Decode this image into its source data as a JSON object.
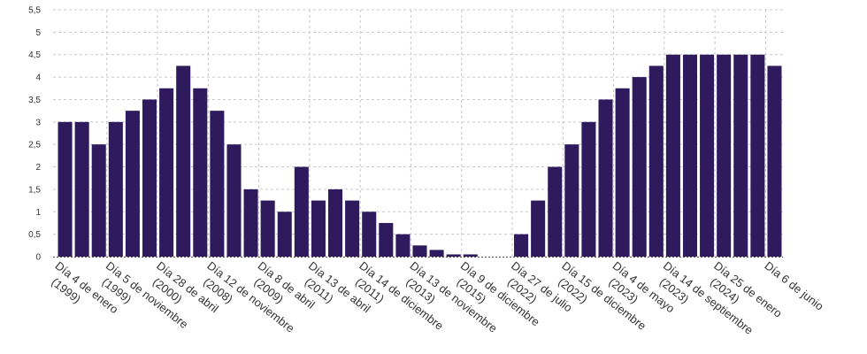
{
  "chart_data": {
    "type": "bar",
    "title": "",
    "xlabel": "",
    "ylabel": "",
    "ylim": [
      0,
      5.5
    ],
    "yticks": [
      "0",
      "0,5",
      "1",
      "1,5",
      "2",
      "2,5",
      "3",
      "3,5",
      "4",
      "4,5",
      "5",
      "5,5"
    ],
    "grid": true,
    "bar_color": "#2e1a5c",
    "categories": [
      "Día 4 de enero (1999)",
      "",
      "",
      "Día 5 de noviembre (1999)",
      "",
      "",
      "Día 28 de abril (2000)",
      "",
      "",
      "Día 12 de noviembre (2008)",
      "",
      "",
      "Día 8 de abril (2009)",
      "",
      "",
      "Día 13 de abril (2011)",
      "",
      "",
      "Día 14 de diciembre (2011)",
      "",
      "",
      "Día 13 de noviembre (2013)",
      "",
      "",
      "Día 9 de diciembre (2015)",
      "",
      "",
      "Día 27 de julio (2022)",
      "",
      "",
      "Día 15 de diciembre (2022)",
      "",
      "",
      "Día 4 de mayo (2023)",
      "",
      "",
      "Día 14 de septiembre (2023)",
      "",
      "",
      "Día 25 de enero (2024)",
      "",
      "",
      "Día 6 de junio"
    ],
    "values": [
      3,
      3,
      2.5,
      3,
      3.25,
      3.5,
      3.75,
      4.25,
      3.75,
      3.25,
      2.5,
      1.5,
      1.25,
      1,
      2,
      1.25,
      1.5,
      1.25,
      1,
      0.75,
      0.5,
      0.25,
      0.15,
      0.05,
      0.05,
      0,
      0,
      0.5,
      1.25,
      2,
      2.5,
      3,
      3.5,
      3.75,
      4,
      4.25,
      4.5,
      4.5,
      4.5,
      4.5,
      4.5,
      4.5,
      4.25
    ]
  }
}
